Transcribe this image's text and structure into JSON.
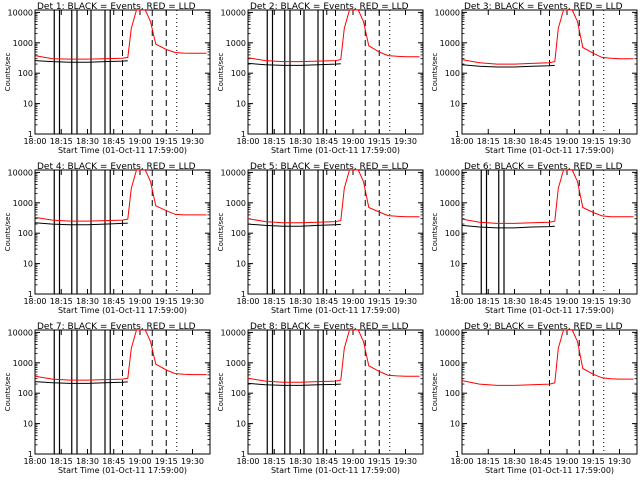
{
  "figure": {
    "xlabel": "Start Time (01-Oct-11 17:59:00)",
    "ylabel": "Counts/sec",
    "x_ticks": [
      "18:00",
      "18:15",
      "18:30",
      "18:45",
      "19:00",
      "19:15",
      "19:30"
    ],
    "y_ticks": [
      "1",
      "10",
      "100",
      "1000",
      "10000"
    ],
    "colors": {
      "events": "#000000",
      "lld": "#ff0000",
      "axes": "#000000",
      "background": "#ffffff"
    }
  },
  "chart_data": [
    {
      "type": "line",
      "title": "Det 1: BLACK = Events, RED = LLD",
      "xlabel": "Start Time (01-Oct-11 17:59:00)",
      "ylabel": "Counts/sec",
      "y_scale": "log",
      "xlim": [
        "18:00",
        "19:40"
      ],
      "ylim": [
        1,
        12000
      ],
      "x": [
        "18:00",
        "18:10",
        "18:20",
        "18:30",
        "18:40",
        "18:50",
        "18:53",
        "18:55",
        "18:58",
        "19:03",
        "19:06",
        "19:09",
        "19:15",
        "19:20",
        "19:25",
        "19:30",
        "19:38"
      ],
      "series": [
        {
          "name": "Events",
          "color": "#000000",
          "values": [
            260,
            240,
            230,
            230,
            240,
            250,
            255,
            null,
            null,
            null,
            null,
            null,
            null,
            null,
            null,
            null,
            null
          ]
        },
        {
          "name": "LLD",
          "color": "#ff0000",
          "values": [
            380,
            300,
            290,
            290,
            300,
            310,
            330,
            3000,
            12000,
            12000,
            5000,
            900,
            600,
            480,
            460,
            450,
            450
          ]
        }
      ],
      "dashed_x": [
        "18:50",
        "19:07",
        "19:15"
      ],
      "dotted_x": [
        "19:21"
      ],
      "solid_dropouts_x": [
        "18:11",
        "18:14",
        "18:21",
        "18:24",
        "18:32",
        "18:40",
        "18:43"
      ]
    },
    {
      "type": "line",
      "title": "Det 2: BLACK = Events, RED = LLD",
      "xlabel": "Start Time (01-Oct-11 17:59:00)",
      "ylabel": "Counts/sec",
      "y_scale": "log",
      "xlim": [
        "18:00",
        "19:40"
      ],
      "ylim": [
        1,
        12000
      ],
      "x": [
        "18:00",
        "18:10",
        "18:20",
        "18:30",
        "18:40",
        "18:50",
        "18:53",
        "18:55",
        "18:58",
        "19:03",
        "19:06",
        "19:09",
        "19:15",
        "19:20",
        "19:25",
        "19:30",
        "19:38"
      ],
      "series": [
        {
          "name": "Events",
          "color": "#000000",
          "values": [
            210,
            190,
            180,
            180,
            190,
            200,
            205,
            null,
            null,
            null,
            null,
            null,
            null,
            null,
            null,
            null,
            null
          ]
        },
        {
          "name": "LLD",
          "color": "#ff0000",
          "values": [
            320,
            260,
            240,
            240,
            250,
            260,
            280,
            3000,
            12000,
            12000,
            5000,
            800,
            500,
            380,
            360,
            350,
            350
          ]
        }
      ],
      "dashed_x": [
        "18:50",
        "19:07",
        "19:15"
      ],
      "dotted_x": [
        "19:21"
      ],
      "solid_dropouts_x": [
        "18:11",
        "18:14",
        "18:21",
        "18:24",
        "18:32",
        "18:40",
        "18:43"
      ]
    },
    {
      "type": "line",
      "title": "Det 3: BLACK = Events, RED = LLD",
      "xlabel": "Start Time (01-Oct-11 17:59:00)",
      "ylabel": "Counts/sec",
      "y_scale": "log",
      "xlim": [
        "18:00",
        "19:40"
      ],
      "ylim": [
        1,
        12000
      ],
      "x": [
        "18:00",
        "18:10",
        "18:20",
        "18:30",
        "18:40",
        "18:50",
        "18:53",
        "18:55",
        "18:58",
        "19:03",
        "19:06",
        "19:09",
        "19:15",
        "19:20",
        "19:25",
        "19:30",
        "19:38"
      ],
      "series": [
        {
          "name": "Events",
          "color": "#000000",
          "values": [
            190,
            170,
            160,
            160,
            170,
            175,
            180,
            null,
            null,
            null,
            null,
            null,
            null,
            null,
            null,
            null,
            null
          ]
        },
        {
          "name": "LLD",
          "color": "#ff0000",
          "values": [
            280,
            220,
            200,
            200,
            210,
            220,
            240,
            3000,
            12000,
            12000,
            5000,
            700,
            450,
            330,
            310,
            300,
            300
          ]
        }
      ],
      "dashed_x": [
        "18:50",
        "19:07",
        "19:15"
      ],
      "dotted_x": [
        "19:21"
      ],
      "solid_dropouts_x": []
    },
    {
      "type": "line",
      "title": "Det 4: BLACK = Events, RED = LLD",
      "xlabel": "Start Time (01-Oct-11 17:59:00)",
      "ylabel": "Counts/sec",
      "y_scale": "log",
      "xlim": [
        "18:00",
        "19:40"
      ],
      "ylim": [
        1,
        12000
      ],
      "x": [
        "18:00",
        "18:10",
        "18:20",
        "18:30",
        "18:40",
        "18:50",
        "18:53",
        "18:55",
        "18:58",
        "19:03",
        "19:06",
        "19:09",
        "19:15",
        "19:20",
        "19:25",
        "19:30",
        "19:38"
      ],
      "series": [
        {
          "name": "Events",
          "color": "#000000",
          "values": [
            220,
            200,
            190,
            190,
            200,
            210,
            215,
            null,
            null,
            null,
            null,
            null,
            null,
            null,
            null,
            null,
            null
          ]
        },
        {
          "name": "LLD",
          "color": "#ff0000",
          "values": [
            330,
            270,
            250,
            250,
            260,
            270,
            290,
            3000,
            12000,
            12000,
            5000,
            800,
            550,
            420,
            400,
            400,
            400
          ]
        }
      ],
      "dashed_x": [
        "18:50",
        "19:07",
        "19:15"
      ],
      "dotted_x": [
        "19:21"
      ],
      "solid_dropouts_x": [
        "18:11",
        "18:14",
        "18:21",
        "18:24",
        "18:32",
        "18:40",
        "18:43"
      ]
    },
    {
      "type": "line",
      "title": "Det 5: BLACK = Events, RED = LLD",
      "xlabel": "Start Time (01-Oct-11 17:59:00)",
      "ylabel": "Counts/sec",
      "y_scale": "log",
      "xlim": [
        "18:00",
        "19:40"
      ],
      "ylim": [
        1,
        12000
      ],
      "x": [
        "18:00",
        "18:10",
        "18:20",
        "18:30",
        "18:40",
        "18:50",
        "18:53",
        "18:55",
        "18:58",
        "19:03",
        "19:06",
        "19:09",
        "19:15",
        "19:20",
        "19:25",
        "19:30",
        "19:38"
      ],
      "series": [
        {
          "name": "Events",
          "color": "#000000",
          "values": [
            200,
            180,
            170,
            170,
            180,
            190,
            195,
            null,
            null,
            null,
            null,
            null,
            null,
            null,
            null,
            null,
            null
          ]
        },
        {
          "name": "LLD",
          "color": "#ff0000",
          "values": [
            300,
            240,
            220,
            220,
            230,
            240,
            260,
            3000,
            12000,
            12000,
            5000,
            700,
            500,
            380,
            360,
            350,
            350
          ]
        }
      ],
      "dashed_x": [
        "18:50",
        "19:07",
        "19:15"
      ],
      "dotted_x": [
        "19:21"
      ],
      "solid_dropouts_x": [
        "18:11",
        "18:14",
        "18:21",
        "18:24",
        "18:32",
        "18:40",
        "18:43"
      ]
    },
    {
      "type": "line",
      "title": "Det 6: BLACK = Events, RED = LLD",
      "xlabel": "Start Time (01-Oct-11 17:59:00)",
      "ylabel": "Counts/sec",
      "y_scale": "log",
      "xlim": [
        "18:00",
        "19:40"
      ],
      "ylim": [
        1,
        12000
      ],
      "x": [
        "18:00",
        "18:10",
        "18:20",
        "18:30",
        "18:40",
        "18:50",
        "18:53",
        "18:55",
        "18:58",
        "19:03",
        "19:06",
        "19:09",
        "19:15",
        "19:20",
        "19:25",
        "19:30",
        "19:38"
      ],
      "series": [
        {
          "name": "Events",
          "color": "#000000",
          "values": [
            180,
            160,
            150,
            150,
            160,
            165,
            170,
            null,
            null,
            null,
            null,
            null,
            null,
            null,
            null,
            null,
            null
          ]
        },
        {
          "name": "LLD",
          "color": "#ff0000",
          "values": [
            290,
            230,
            210,
            210,
            220,
            230,
            250,
            3000,
            12000,
            12000,
            5000,
            700,
            480,
            370,
            350,
            350,
            350
          ]
        }
      ],
      "dashed_x": [
        "18:50",
        "19:07",
        "19:15"
      ],
      "dotted_x": [
        "19:21"
      ],
      "solid_dropouts_x": [
        "18:11",
        "18:14",
        "18:21",
        "18:24"
      ]
    },
    {
      "type": "line",
      "title": "Det 7: BLACK = Events, RED = LLD",
      "xlabel": "Start Time (01-Oct-11 17:59:00)",
      "ylabel": "Counts/sec",
      "y_scale": "log",
      "xlim": [
        "18:00",
        "19:40"
      ],
      "ylim": [
        1,
        12000
      ],
      "x": [
        "18:00",
        "18:10",
        "18:20",
        "18:30",
        "18:40",
        "18:50",
        "18:53",
        "18:55",
        "18:58",
        "19:03",
        "19:06",
        "19:09",
        "19:15",
        "19:20",
        "19:25",
        "19:30",
        "19:38"
      ],
      "series": [
        {
          "name": "Events",
          "color": "#000000",
          "values": [
            240,
            220,
            210,
            210,
            220,
            230,
            235,
            null,
            null,
            null,
            null,
            null,
            null,
            null,
            null,
            null,
            null
          ]
        },
        {
          "name": "LLD",
          "color": "#ff0000",
          "values": [
            360,
            290,
            270,
            270,
            280,
            290,
            310,
            3000,
            12000,
            12000,
            5000,
            900,
            580,
            440,
            420,
            410,
            410
          ]
        }
      ],
      "dashed_x": [
        "18:50",
        "19:07",
        "19:15"
      ],
      "dotted_x": [
        "19:21"
      ],
      "solid_dropouts_x": [
        "18:11",
        "18:14",
        "18:21",
        "18:24",
        "18:32",
        "18:40",
        "18:43"
      ]
    },
    {
      "type": "line",
      "title": "Det 8: BLACK = Events, RED = LLD",
      "xlabel": "Start Time (01-Oct-11 17:59:00)",
      "ylabel": "Counts/sec",
      "y_scale": "log",
      "xlim": [
        "18:00",
        "19:40"
      ],
      "ylim": [
        1,
        12000
      ],
      "x": [
        "18:00",
        "18:10",
        "18:20",
        "18:30",
        "18:40",
        "18:50",
        "18:53",
        "18:55",
        "18:58",
        "19:03",
        "19:06",
        "19:09",
        "19:15",
        "19:20",
        "19:25",
        "19:30",
        "19:38"
      ],
      "series": [
        {
          "name": "Events",
          "color": "#000000",
          "values": [
            210,
            190,
            180,
            180,
            190,
            195,
            200,
            null,
            null,
            null,
            null,
            null,
            null,
            null,
            null,
            null,
            null
          ]
        },
        {
          "name": "LLD",
          "color": "#ff0000",
          "values": [
            310,
            250,
            230,
            230,
            240,
            250,
            270,
            3000,
            12000,
            12000,
            5000,
            800,
            520,
            390,
            370,
            360,
            360
          ]
        }
      ],
      "dashed_x": [
        "18:50",
        "19:07",
        "19:15"
      ],
      "dotted_x": [
        "19:21"
      ],
      "solid_dropouts_x": [
        "18:11",
        "18:14",
        "18:21",
        "18:24",
        "18:32",
        "18:40",
        "18:43"
      ]
    },
    {
      "type": "line",
      "title": "Det 9: BLACK = Events, RED = LLD",
      "xlabel": "Start Time (01-Oct-11 17:59:00)",
      "ylabel": "Counts/sec",
      "y_scale": "log",
      "xlim": [
        "18:00",
        "19:40"
      ],
      "ylim": [
        1,
        12000
      ],
      "x": [
        "18:00",
        "18:10",
        "18:20",
        "18:30",
        "18:40",
        "18:50",
        "18:53",
        "18:55",
        "18:58",
        "19:03",
        "19:06",
        "19:09",
        "19:15",
        "19:20",
        "19:25",
        "19:30",
        "19:38"
      ],
      "series": [
        {
          "name": "Events",
          "color": "#000000",
          "values": [
            null,
            null,
            null,
            null,
            null,
            null,
            null,
            null,
            null,
            null,
            null,
            null,
            null,
            null,
            null,
            null,
            null
          ]
        },
        {
          "name": "LLD",
          "color": "#ff0000",
          "values": [
            260,
            200,
            180,
            180,
            190,
            200,
            220,
            3000,
            12000,
            12000,
            5000,
            650,
            420,
            320,
            300,
            290,
            290
          ]
        }
      ],
      "dashed_x": [
        "18:50",
        "19:07",
        "19:15"
      ],
      "dotted_x": [
        "19:21"
      ],
      "solid_dropouts_x": []
    }
  ]
}
